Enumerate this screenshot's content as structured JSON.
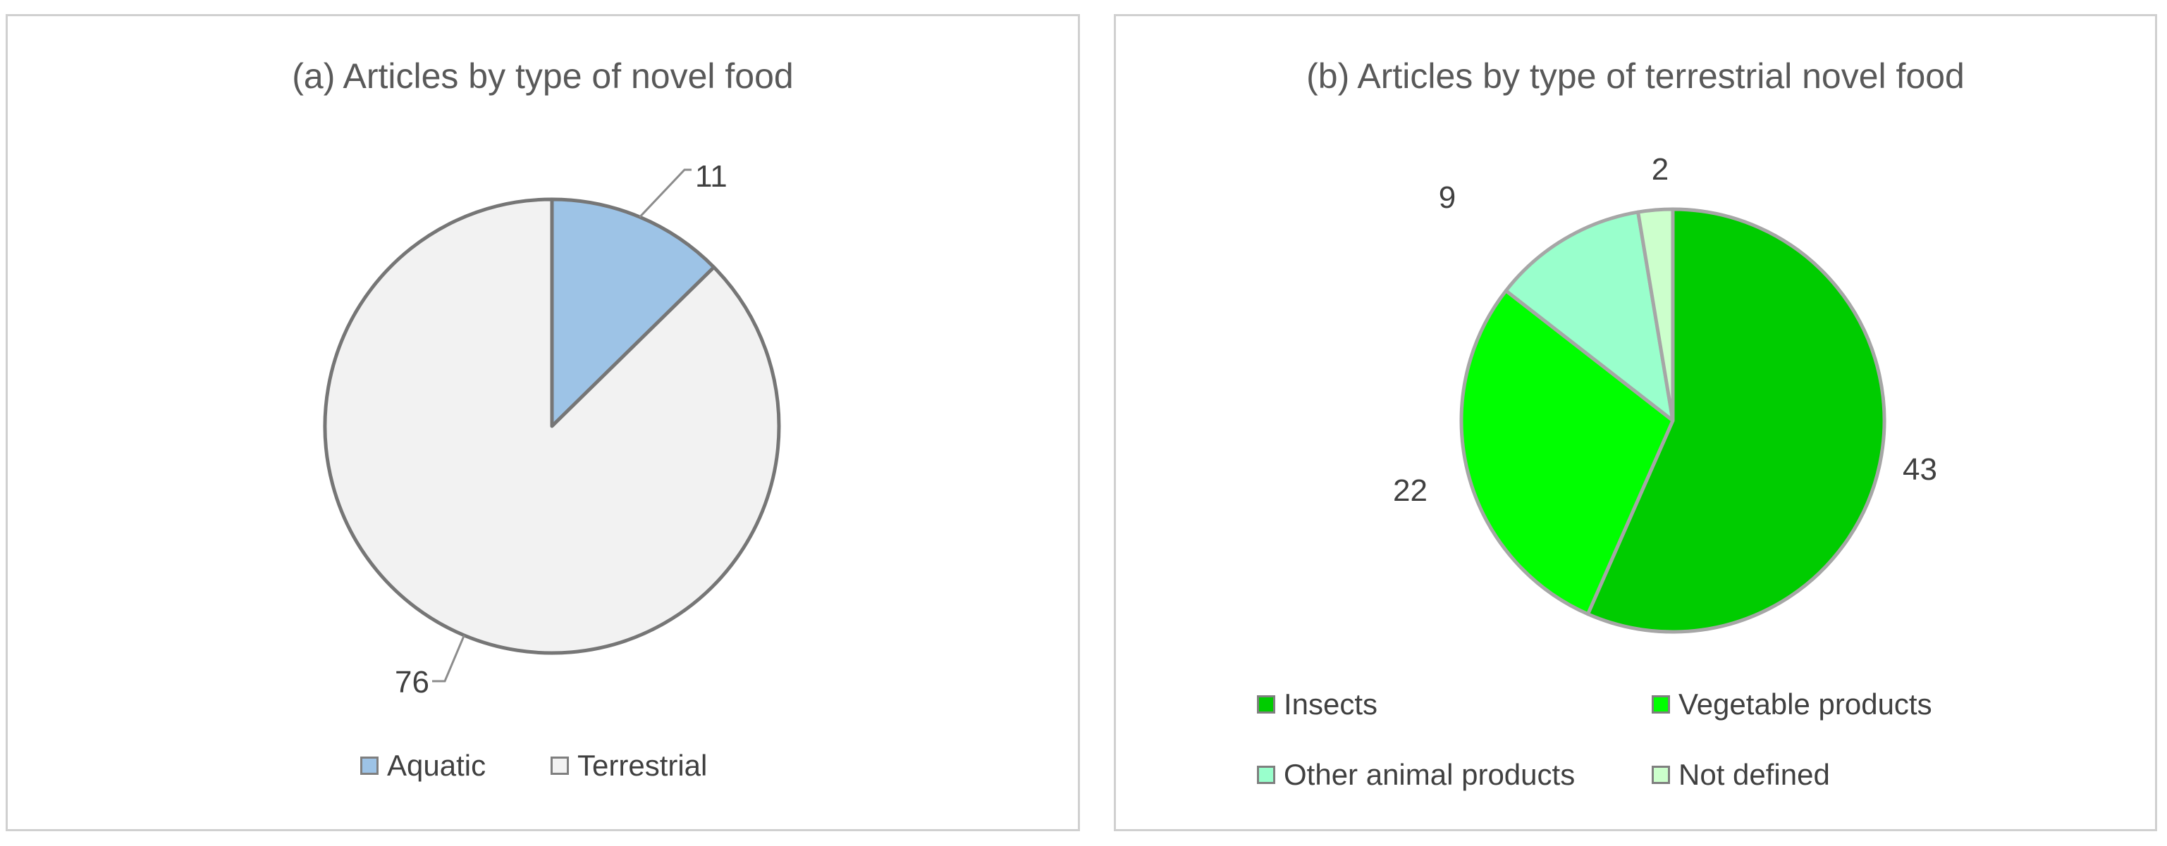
{
  "chart_data": [
    {
      "type": "pie",
      "title": "(a) Articles by type of novel food",
      "categories": [
        "Aquatic",
        "Terrestrial"
      ],
      "values": [
        11,
        76
      ],
      "colors": [
        "#9dc3e6",
        "#f2f2f2"
      ],
      "data_labels": [
        "11",
        "76"
      ],
      "legend": "bottom"
    },
    {
      "type": "pie",
      "title": "(b) Articles by type of terrestrial novel food",
      "categories": [
        "Insects",
        "Vegetable products",
        "Other animal products",
        "Not defined"
      ],
      "values": [
        43,
        22,
        9,
        2
      ],
      "colors": [
        "#00cc00",
        "#00ff00",
        "#99ffcc",
        "#ccffcc"
      ],
      "data_labels": [
        "43",
        "22",
        "9",
        "2"
      ],
      "legend": "bottom"
    }
  ]
}
